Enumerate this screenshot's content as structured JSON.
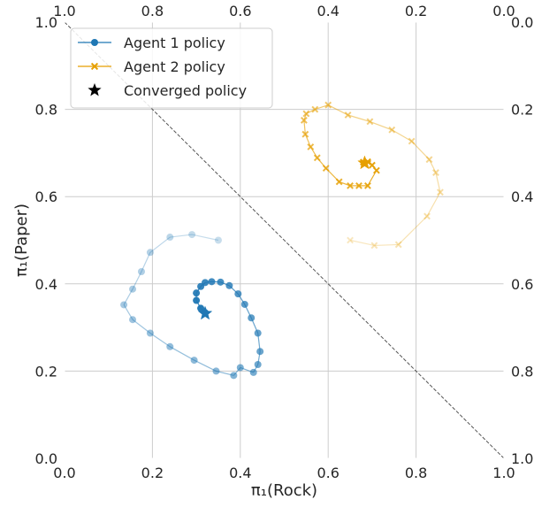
{
  "chart_data": {
    "type": "scatter",
    "title": "",
    "xlabel": "π₁(Rock)",
    "ylabel": "π₁(Paper)",
    "xlim": [
      0,
      1
    ],
    "ylim": [
      0,
      1
    ],
    "grid": true,
    "legend_position": "top-left",
    "ticks": [
      "0.0",
      "0.2",
      "0.4",
      "0.6",
      "0.8",
      "1.0"
    ],
    "top_ticks": [
      "1.0",
      "0.8",
      "0.6",
      "0.4",
      "0.2",
      "0.0"
    ],
    "right_ticks": [
      "1.0",
      "0.8",
      "0.6",
      "0.4",
      "0.2",
      "0.0"
    ],
    "colors": {
      "agent1": "#1f77b4",
      "agent2": "#e69f00",
      "converged": "#000000",
      "grid": "#cccccc",
      "diagonal": "#555555"
    },
    "legend": [
      {
        "label": "Agent 1 policy",
        "marker": "circle"
      },
      {
        "label": "Agent 2 policy",
        "marker": "x"
      },
      {
        "label": "Converged policy",
        "marker": "star"
      }
    ],
    "series": [
      {
        "name": "Agent 1 policy",
        "marker": "circle",
        "x": [
          0.35,
          0.29,
          0.24,
          0.195,
          0.175,
          0.155,
          0.135,
          0.155,
          0.195,
          0.24,
          0.295,
          0.345,
          0.385,
          0.4,
          0.43,
          0.44,
          0.445,
          0.44,
          0.425,
          0.41,
          0.395,
          0.375,
          0.355,
          0.335,
          0.32,
          0.31,
          0.3,
          0.3,
          0.31,
          0.32
        ],
        "y": [
          0.5,
          0.513,
          0.507,
          0.472,
          0.428,
          0.388,
          0.352,
          0.318,
          0.287,
          0.256,
          0.225,
          0.2,
          0.19,
          0.208,
          0.197,
          0.215,
          0.245,
          0.287,
          0.322,
          0.353,
          0.377,
          0.396,
          0.404,
          0.405,
          0.403,
          0.394,
          0.379,
          0.362,
          0.344,
          0.334
        ]
      },
      {
        "name": "Agent 2 policy",
        "marker": "x",
        "x": [
          0.65,
          0.705,
          0.76,
          0.825,
          0.855,
          0.845,
          0.83,
          0.79,
          0.745,
          0.695,
          0.645,
          0.6,
          0.57,
          0.55,
          0.545,
          0.548,
          0.56,
          0.575,
          0.595,
          0.625,
          0.65,
          0.67,
          0.69,
          0.71,
          0.7,
          0.69,
          0.68
        ],
        "y": [
          0.5,
          0.488,
          0.49,
          0.555,
          0.61,
          0.655,
          0.685,
          0.727,
          0.753,
          0.772,
          0.787,
          0.81,
          0.8,
          0.79,
          0.775,
          0.743,
          0.714,
          0.689,
          0.665,
          0.634,
          0.625,
          0.625,
          0.625,
          0.66,
          0.672,
          0.68,
          0.679
        ]
      }
    ],
    "converged_points": [
      {
        "x": 0.32,
        "y": 0.332
      },
      {
        "x": 0.683,
        "y": 0.677
      }
    ]
  }
}
